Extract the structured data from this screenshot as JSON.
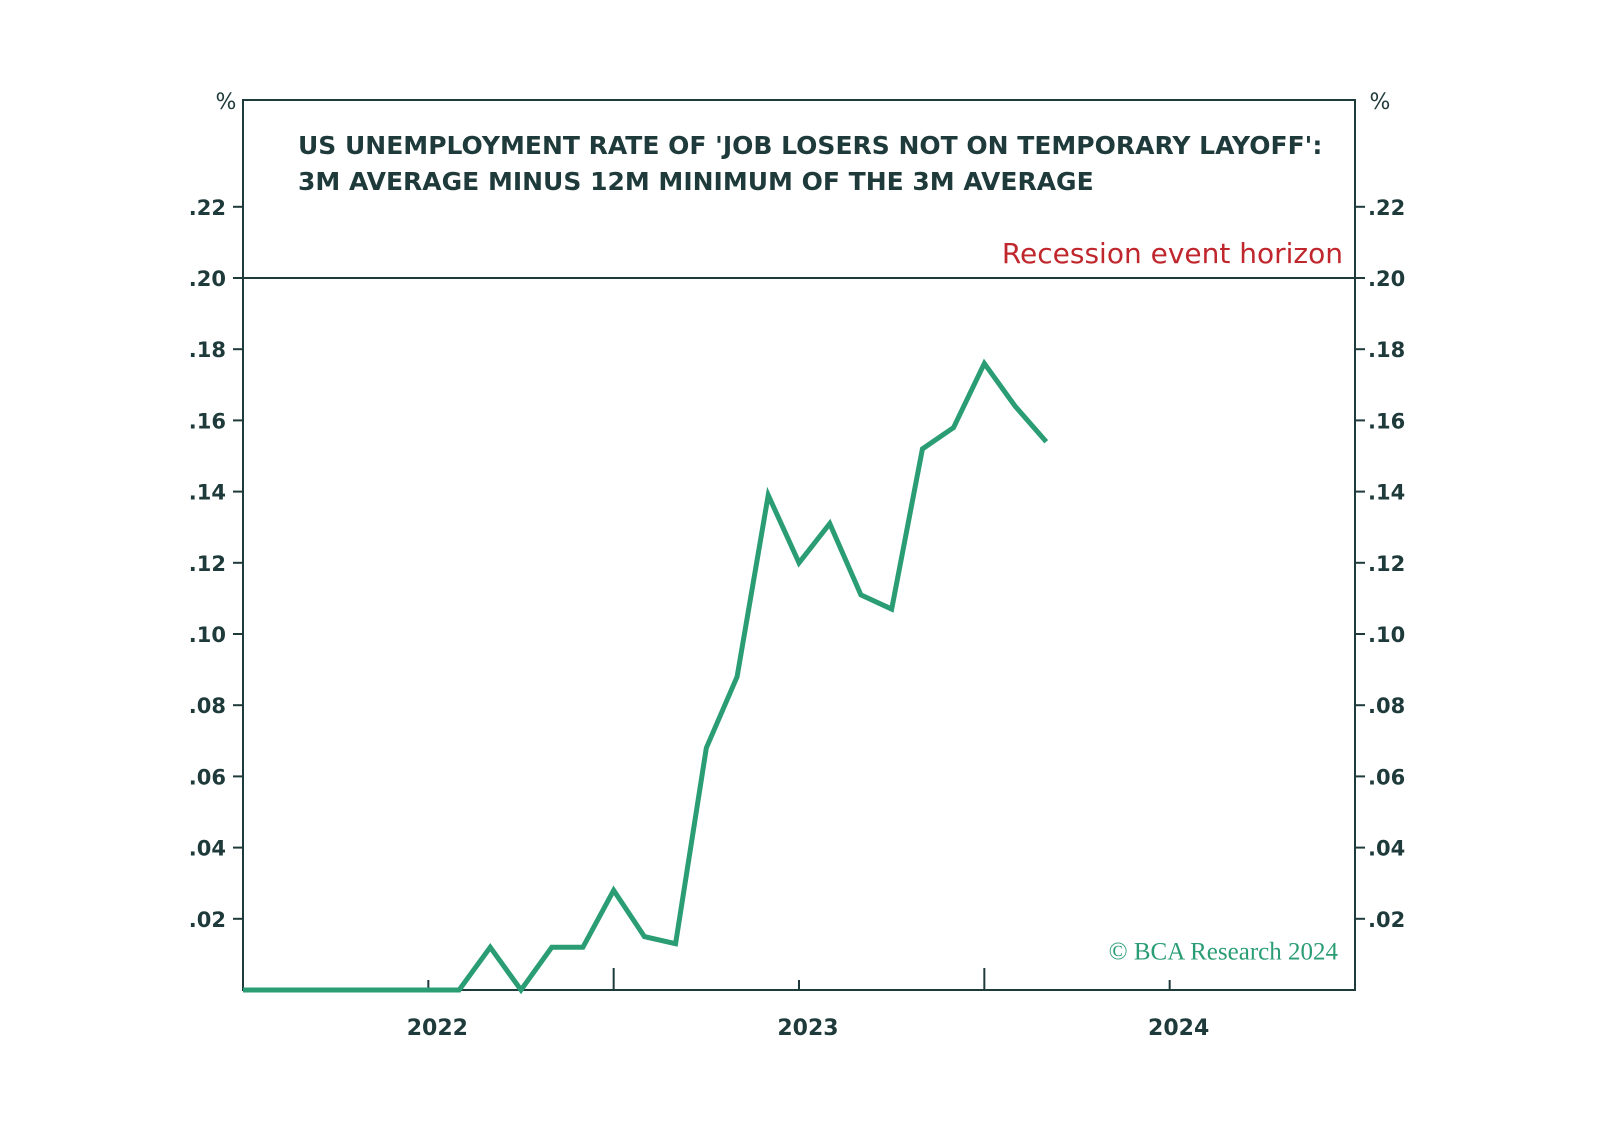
{
  "chart_data": {
    "type": "line",
    "title": [
      "US UNEMPLOYMENT RATE OF 'JOB LOSERS NOT ON TEMPORARY LAYOFF':",
      "3M AVERAGE MINUS 12M MINIMUM OF THE 3M AVERAGE"
    ],
    "y_unit": "%",
    "x": [
      2021.5,
      2021.583,
      2021.667,
      2021.75,
      2021.833,
      2021.917,
      2022,
      2022.083,
      2022.167,
      2022.25,
      2022.333,
      2022.417,
      2022.5,
      2022.583,
      2022.667,
      2022.75,
      2022.833,
      2022.917,
      2023,
      2023.083,
      2023.167,
      2023.25,
      2023.333,
      2023.417,
      2023.5,
      2023.583,
      2023.667
    ],
    "series": [
      {
        "color": "#2a9d74",
        "values": [
          0,
          0,
          0,
          0,
          0,
          0,
          0,
          0,
          0.012,
          0,
          0.012,
          0.012,
          0.028,
          0.015,
          0.013,
          0.068,
          0.088,
          0.139,
          0.12,
          0.131,
          0.111,
          0.107,
          0.152,
          0.158,
          0.176,
          0.164,
          0.154
        ]
      }
    ],
    "xlim": [
      2021.5,
      2024.5
    ],
    "xticks": [
      2022,
      2023,
      2024
    ],
    "xminorticks": [
      2022.5,
      2023.5
    ],
    "ylim": [
      0,
      0.25
    ],
    "yticks": [
      {
        "value": 0.02,
        "label": ".02"
      },
      {
        "value": 0.04,
        "label": ".04"
      },
      {
        "value": 0.06,
        "label": ".06"
      },
      {
        "value": 0.08,
        "label": ".08"
      },
      {
        "value": 0.1,
        "label": ".10"
      },
      {
        "value": 0.12,
        "label": ".12"
      },
      {
        "value": 0.14,
        "label": ".14"
      },
      {
        "value": 0.16,
        "label": ".16"
      },
      {
        "value": 0.18,
        "label": ".18"
      },
      {
        "value": 0.2,
        "label": ".20"
      },
      {
        "value": 0.22,
        "label": ".22"
      }
    ],
    "hline": {
      "value": 0.2,
      "label": "Recession event horizon",
      "color": "#c0272d"
    },
    "source": "© BCA Research 2024",
    "source_color": "#2a9d74",
    "axis_color": "#1f3a3a"
  }
}
